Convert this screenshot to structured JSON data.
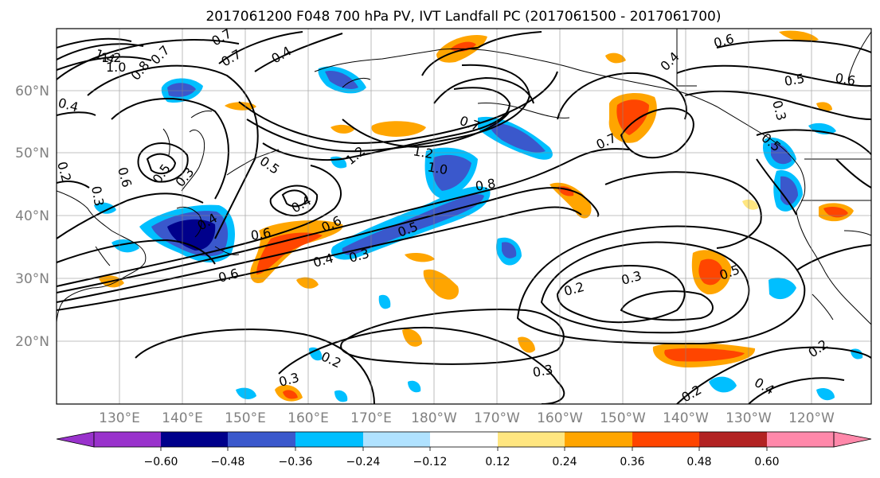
{
  "title": "2017061200 F048 700 hPa PV, IVT Landfall PC (2017061500 - 2017061700)",
  "lat_labels": [
    "60°N",
    "50°N",
    "40°N",
    "30°N",
    "20°N"
  ],
  "lon_labels": [
    "130°E",
    "140°E",
    "150°E",
    "160°E",
    "170°E",
    "180°W",
    "170°W",
    "160°W",
    "150°W",
    "140°W",
    "130°W",
    "120°W"
  ],
  "colorbar": {
    "ticks": [
      "−0.60",
      "−0.48",
      "−0.36",
      "−0.24",
      "−0.12",
      "0.12",
      "0.24",
      "0.36",
      "0.48",
      "0.60"
    ],
    "colors": [
      "#9932cc",
      "#00008b",
      "#3a58cc",
      "#00bfff",
      "#b0e2ff",
      "#ffffff",
      "#ffe680",
      "#ffa500",
      "#ff4500",
      "#b22222",
      "#ff88aa"
    ]
  },
  "contour_labels": [
    "1.4",
    "1.2",
    "1.0",
    "0.8",
    "0.7",
    "0.4",
    "0.7",
    "0.4",
    "0.2",
    "0.3",
    "0.6",
    "0.5",
    "0.4",
    "0.6",
    "0.5",
    "0.3",
    "1.2",
    "1.2",
    "1.0",
    "0.8",
    "0.7",
    "0.6",
    "0.4",
    "0.6",
    "0.7",
    "0.5",
    "0.4",
    "0.3",
    "0.2",
    "0.3",
    "0.5",
    "0.3",
    "0.2",
    "0.3",
    "0.7",
    "0.4",
    "0.6",
    "0.5",
    "0.3",
    "0.5",
    "0.6",
    "0.2",
    "0.4",
    "0.2"
  ]
}
